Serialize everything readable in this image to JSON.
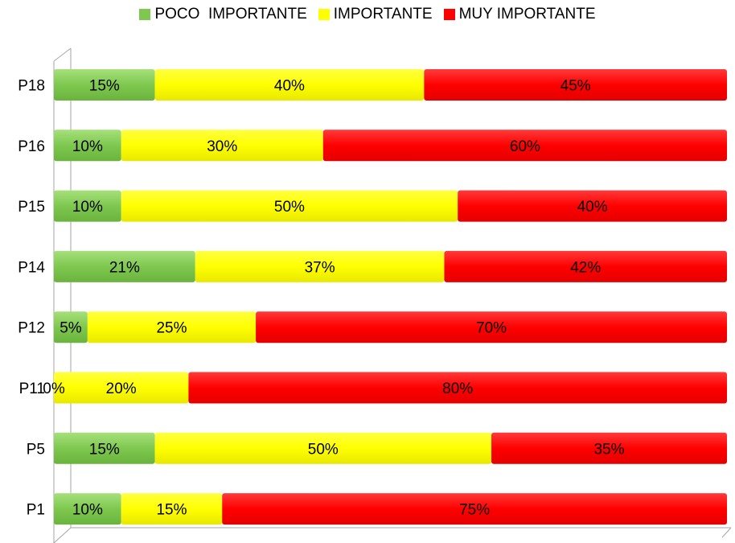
{
  "chart_data": {
    "type": "bar",
    "orientation": "horizontal",
    "stacked": "percent",
    "categories": [
      "P18",
      "P16",
      "P15",
      "P14",
      "P12",
      "P11",
      "P5",
      "P1"
    ],
    "series": [
      {
        "name": "POCO  IMPORTANTE",
        "color": "#7ec850",
        "values": [
          15,
          10,
          10,
          21,
          5,
          0,
          15,
          10
        ],
        "labels": [
          "15%",
          "10%",
          "10%",
          "21%",
          "5%",
          "0%",
          "15%",
          "10%"
        ]
      },
      {
        "name": "IMPORTANTE",
        "color": "#ffff00",
        "values": [
          40,
          30,
          50,
          37,
          25,
          20,
          50,
          15
        ],
        "labels": [
          "40%",
          "30%",
          "50%",
          "37%",
          "25%",
          "20%",
          "50%",
          "15%"
        ]
      },
      {
        "name": "MUY IMPORTANTE",
        "color": "#ff0000",
        "values": [
          45,
          60,
          40,
          42,
          70,
          80,
          35,
          75
        ],
        "labels": [
          "45%",
          "60%",
          "40%",
          "42%",
          "70%",
          "80%",
          "35%",
          "75%"
        ]
      }
    ],
    "xlim": [
      0,
      100
    ],
    "legend_position": "top",
    "grid": false
  }
}
